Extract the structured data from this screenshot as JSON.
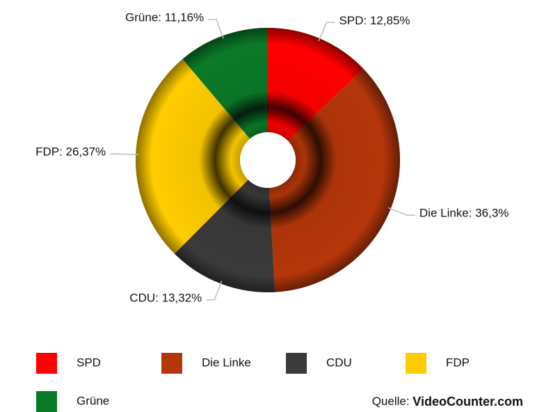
{
  "chart_data": {
    "type": "donut",
    "categories": [
      "SPD",
      "Die Linke",
      "CDU",
      "FDP",
      "Grüne"
    ],
    "values": [
      12.85,
      36.3,
      13.32,
      26.37,
      11.16
    ],
    "value_labels": [
      "SPD: 12,85%",
      "Die Linke: 36,3%",
      "CDU: 13,32%",
      "FDP: 26,37%",
      "Grüne: 11,16%"
    ],
    "colors": [
      "#ff0000",
      "#b5360a",
      "#3a3a3a",
      "#ffcc00",
      "#0a7a28"
    ],
    "legend": "bottom",
    "source_label": "Quelle:",
    "source": "VideoCounter.com"
  }
}
